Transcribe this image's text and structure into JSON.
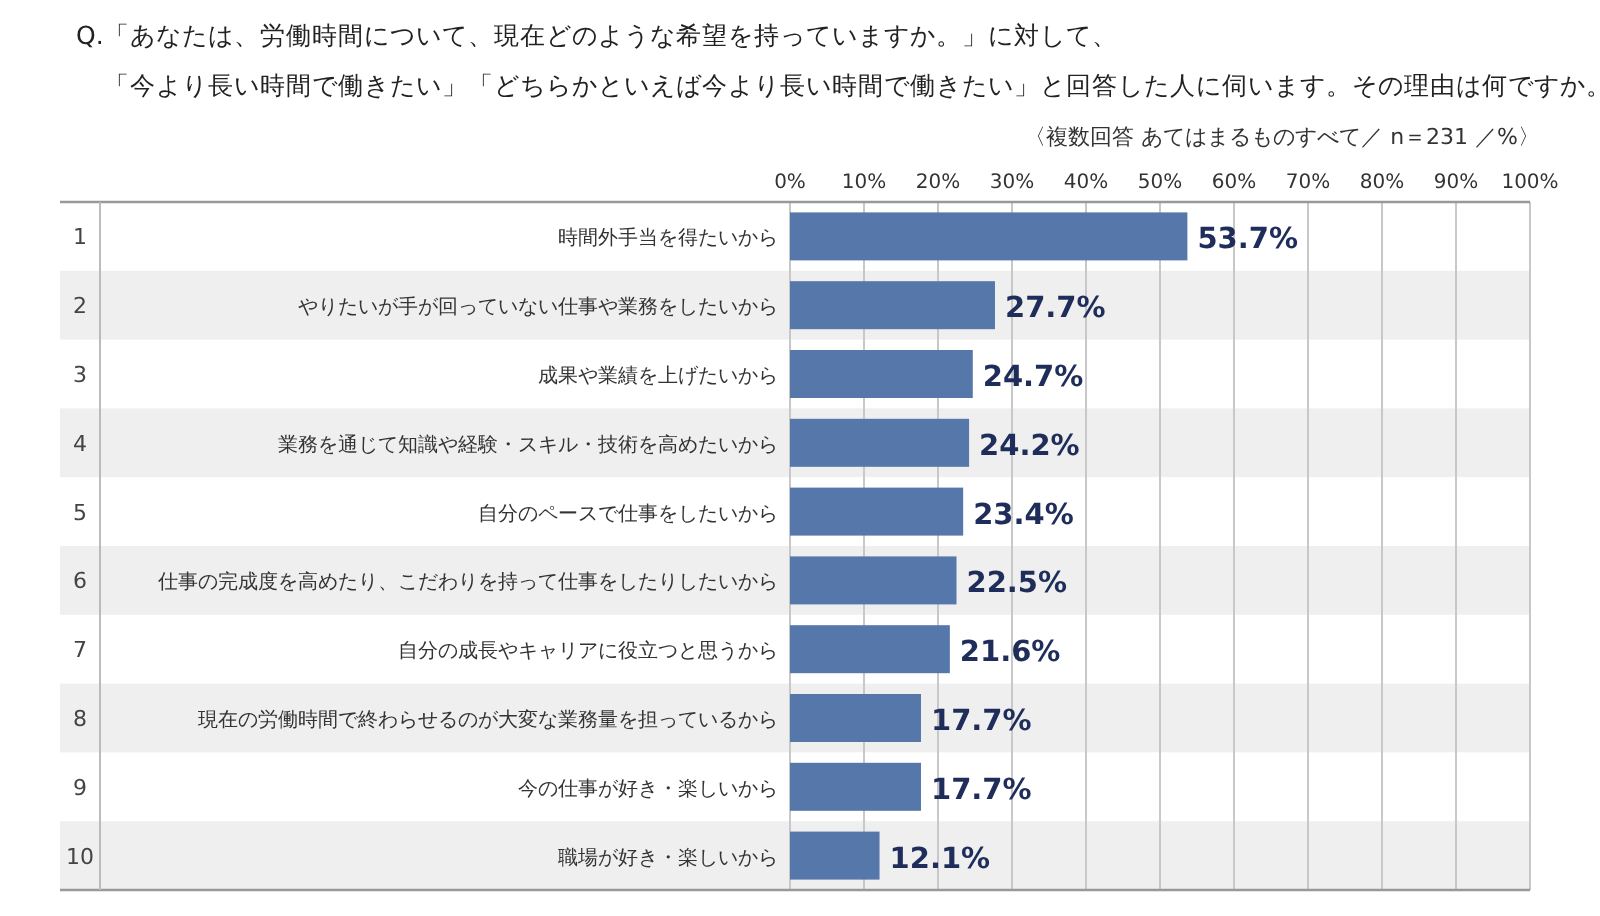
{
  "chart_data": {
    "type": "bar",
    "orientation": "horizontal",
    "title": "Q.「あなたは、労働時間について、現在どのような希望を持っていますか。」に対して、",
    "subtitle": "「今より長い時間で働きたい」「どちらかといえば今より長い時間で働きたい」と回答した人に伺います。その理由は何ですか。",
    "annotations": [
      "〈複数回答 あてはまるものすべて／ n＝231 ／%〉",
      "1",
      "2",
      "3",
      "4",
      "5",
      "6",
      "7",
      "8",
      "9",
      "10"
    ],
    "categories": [
      "時間外手当を得たいから",
      "やりたいが手が回っていない仕事や業務をしたいから",
      "成果や業績を上げたいから",
      "業務を通じて知識や経験・スキル・技術を高めたいから",
      "自分のペースで仕事をしたいから",
      "仕事の完成度を高めたり、こだわりを持って仕事をしたりしたいから",
      "自分の成長やキャリアに役立つと思うから",
      "現在の労働時間で終わらせるのが大変な業務量を担っているから",
      "今の仕事が好き・楽しいから",
      "職場が好き・楽しいから"
    ],
    "values": [
      53.7,
      27.7,
      24.7,
      24.2,
      23.4,
      22.5,
      21.6,
      17.7,
      17.7,
      12.1
    ],
    "value_labels": [
      "53.7%",
      "27.7%",
      "24.7%",
      "24.2%",
      "23.4%",
      "22.5%",
      "21.6%",
      "17.7%",
      "17.7%",
      "12.1%"
    ],
    "color": "#5677aa",
    "xlim": [
      0,
      100
    ],
    "xticks": [
      {
        "value": 0,
        "label": "0%"
      },
      {
        "value": 10,
        "label": "10%"
      },
      {
        "value": 20,
        "label": "20%"
      },
      {
        "value": 30,
        "label": "30%"
      },
      {
        "value": 40,
        "label": "40%"
      },
      {
        "value": 50,
        "label": "50%"
      },
      {
        "value": 60,
        "label": "60%"
      },
      {
        "value": 70,
        "label": "70%"
      },
      {
        "value": 80,
        "label": "80%"
      },
      {
        "value": 90,
        "label": "90%"
      },
      {
        "value": 100,
        "label": "100%"
      }
    ],
    "grid": "x"
  }
}
